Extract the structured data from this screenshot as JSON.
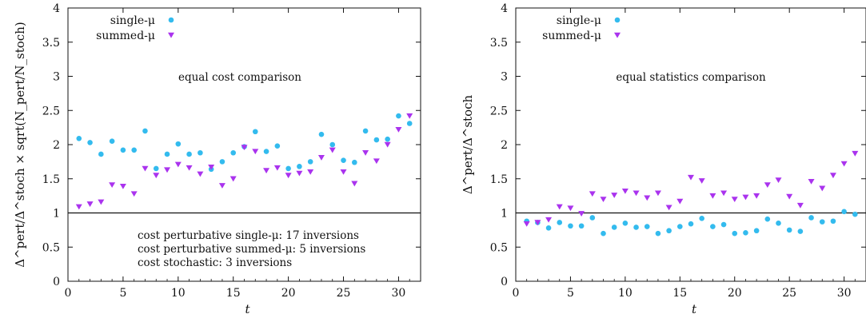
{
  "chart_data": [
    {
      "type": "scatter",
      "panel": "left",
      "xlabel": "t",
      "ylabel": "Δ^pert/Δ^stoch × sqrt(N_pert/N_stoch)",
      "xlim": [
        0,
        32
      ],
      "ylim": [
        0,
        4
      ],
      "x_ticks": [
        "0",
        "5",
        "10",
        "15",
        "20",
        "25",
        "30"
      ],
      "y_ticks": [
        "0",
        "0.5",
        "1",
        "1.5",
        "2",
        "2.5",
        "3",
        "3.5",
        "4"
      ],
      "grid": false,
      "legend_position": "top-left",
      "reference_line": 1,
      "annotations": [
        "equal cost comparison"
      ],
      "note_lines": [
        "cost perturbative single-μ: 17 inversions",
        "cost perturbative summed-μ: 5 inversions",
        "cost stochastic: 3 inversions"
      ],
      "x": [
        1,
        2,
        3,
        4,
        5,
        6,
        7,
        8,
        9,
        10,
        11,
        12,
        13,
        14,
        15,
        16,
        17,
        18,
        19,
        20,
        21,
        22,
        23,
        24,
        25,
        26,
        27,
        28,
        29,
        30,
        31
      ],
      "series": [
        {
          "name": "single-μ",
          "color": "#33bbee",
          "marker": "circle",
          "values": [
            2.09,
            2.03,
            1.86,
            2.05,
            1.92,
            1.92,
            2.2,
            1.65,
            1.86,
            2.01,
            1.86,
            1.88,
            1.64,
            1.75,
            1.88,
            1.97,
            2.19,
            1.9,
            1.98,
            1.65,
            1.68,
            1.75,
            2.15,
            2.0,
            1.77,
            1.74,
            2.2,
            2.07,
            2.08,
            2.42,
            2.31
          ]
        },
        {
          "name": "summed-μ",
          "color": "#aa33ee",
          "marker": "triangle-down",
          "values": [
            1.09,
            1.13,
            1.16,
            1.41,
            1.39,
            1.28,
            1.65,
            1.55,
            1.63,
            1.71,
            1.66,
            1.57,
            1.67,
            1.4,
            1.5,
            1.96,
            1.9,
            1.62,
            1.66,
            1.55,
            1.58,
            1.6,
            1.81,
            1.92,
            1.6,
            1.43,
            1.88,
            1.76,
            2.0,
            2.22,
            2.42
          ]
        }
      ]
    },
    {
      "type": "scatter",
      "panel": "right",
      "xlabel": "t",
      "ylabel": "Δ^pert/Δ^stoch",
      "xlim": [
        0,
        32
      ],
      "ylim": [
        0,
        4
      ],
      "x_ticks": [
        "0",
        "5",
        "10",
        "15",
        "20",
        "25",
        "30"
      ],
      "y_ticks": [
        "0",
        "0.5",
        "1",
        "1.5",
        "2",
        "2.5",
        "3",
        "3.5",
        "4"
      ],
      "grid": false,
      "legend_position": "top-left",
      "reference_line": 1,
      "annotations": [
        "equal statistics comparison"
      ],
      "note_lines": [],
      "x": [
        1,
        2,
        3,
        4,
        5,
        6,
        7,
        8,
        9,
        10,
        11,
        12,
        13,
        14,
        15,
        16,
        17,
        18,
        19,
        20,
        21,
        22,
        23,
        24,
        25,
        26,
        27,
        28,
        29,
        30,
        31
      ],
      "series": [
        {
          "name": "single-μ",
          "color": "#33bbee",
          "marker": "circle",
          "values": [
            0.88,
            0.86,
            0.78,
            0.86,
            0.81,
            0.81,
            0.93,
            0.7,
            0.79,
            0.85,
            0.79,
            0.8,
            0.7,
            0.74,
            0.8,
            0.84,
            0.92,
            0.8,
            0.83,
            0.7,
            0.71,
            0.74,
            0.91,
            0.85,
            0.75,
            0.73,
            0.93,
            0.87,
            0.88,
            1.02,
            0.98
          ]
        },
        {
          "name": "summed-μ",
          "color": "#aa33ee",
          "marker": "triangle-down",
          "values": [
            0.84,
            0.86,
            0.9,
            1.09,
            1.07,
            0.99,
            1.28,
            1.2,
            1.26,
            1.32,
            1.29,
            1.22,
            1.29,
            1.08,
            1.17,
            1.52,
            1.47,
            1.25,
            1.29,
            1.2,
            1.23,
            1.25,
            1.41,
            1.48,
            1.24,
            1.11,
            1.46,
            1.36,
            1.55,
            1.72,
            1.87
          ]
        }
      ]
    }
  ]
}
